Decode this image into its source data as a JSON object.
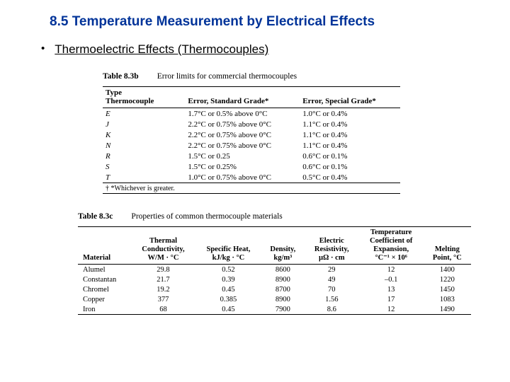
{
  "heading": "8.5 Temperature Measurement by Electrical Effects",
  "bullet": "Thermoelectric Effects (Thermocouples)",
  "table_b": {
    "label": "Table 8.3b",
    "title": "Error limits for commercial thermocouples",
    "header_row1": "Type",
    "header_row2": "Thermocouple",
    "col_std": "Error, Standard Grade*",
    "col_spec": "Error, Special Grade*",
    "rows": [
      {
        "t": "E",
        "std": "1.7°C or 0.5% above 0°C",
        "spec": "1.0°C or 0.4%"
      },
      {
        "t": "J",
        "std": "2.2°C or 0.75% above 0°C",
        "spec": "1.1°C or 0.4%"
      },
      {
        "t": "K",
        "std": "2.2°C or 0.75% above 0°C",
        "spec": "1.1°C or 0.4%"
      },
      {
        "t": "N",
        "std": "2.2°C or 0.75% above 0°C",
        "spec": "1.1°C or 0.4%"
      },
      {
        "t": "R",
        "std": "1.5°C or 0.25",
        "spec": "0.6°C or 0.1%"
      },
      {
        "t": "S",
        "std": "1.5°C or 0.25%",
        "spec": "0.6°C or 0.1%"
      },
      {
        "t": "T",
        "std": "1.0°C or 0.75% above 0°C",
        "spec": "0.5°C or 0.4%"
      }
    ],
    "footnote": "† *Whichever is greater."
  },
  "table_c": {
    "label": "Table 8.3c",
    "title": "Properties of common thermocouple materials",
    "cols": {
      "mat": "Material",
      "tc1": "Thermal",
      "tc2": "Conductivity,",
      "tc3": "W/M · °C",
      "sh1": "Specific Heat,",
      "sh2": "kJ/kg · °C",
      "d1": "Density,",
      "d2": "kg/m³",
      "er1": "Electric",
      "er2": "Resistivity,",
      "er3": "µΩ · cm",
      "te1": "Temperature",
      "te2": "Coefficient of",
      "te3": "Expansion,",
      "te4": "°C⁻¹ × 10⁶",
      "mp1": "Melting",
      "mp2": "Point, °C"
    },
    "rows": [
      {
        "m": "Alumel",
        "tc": "29.8",
        "sh": "0.52",
        "d": "8600",
        "er": "29",
        "te": "12",
        "mp": "1400"
      },
      {
        "m": "Constantan",
        "tc": "21.7",
        "sh": "0.39",
        "d": "8900",
        "er": "49",
        "te": "–0.1",
        "mp": "1220"
      },
      {
        "m": "Chromel",
        "tc": "19.2",
        "sh": "0.45",
        "d": "8700",
        "er": "70",
        "te": "13",
        "mp": "1450"
      },
      {
        "m": "Copper",
        "tc": "377",
        "sh": "0.385",
        "d": "8900",
        "er": "1.56",
        "te": "17",
        "mp": "1083"
      },
      {
        "m": "Iron",
        "tc": "68",
        "sh": "0.45",
        "d": "7900",
        "er": "8.6",
        "te": "12",
        "mp": "1490"
      }
    ]
  },
  "colors": {
    "heading": "#003399",
    "text": "#000000",
    "rule": "#000000",
    "background": "#ffffff"
  }
}
